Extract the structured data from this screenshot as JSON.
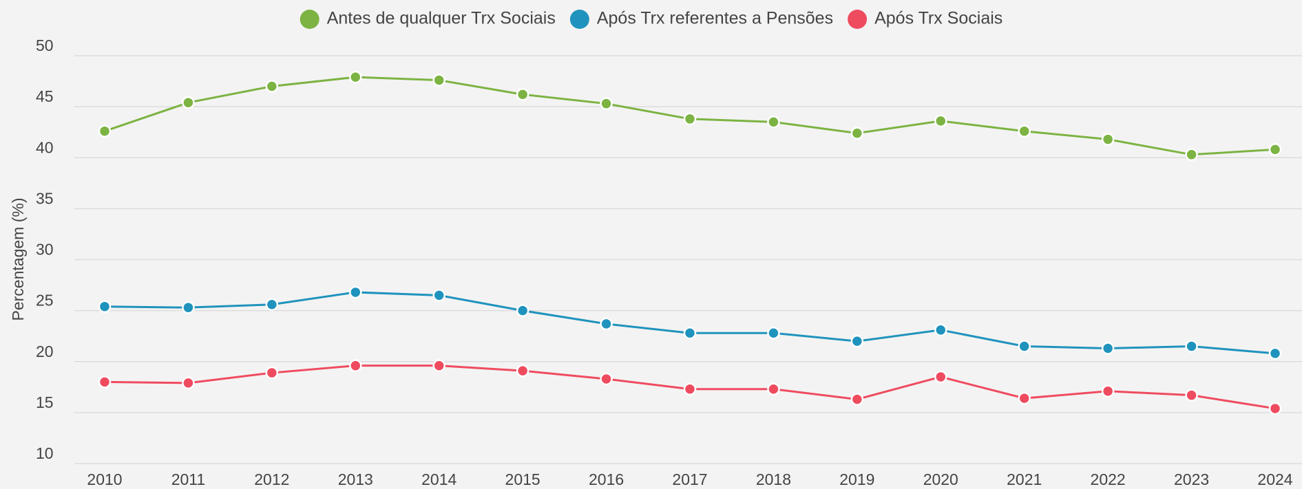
{
  "chart_data": {
    "type": "line",
    "y_label": "Percentagem (%)",
    "categories": [
      "2010",
      "2011",
      "2012",
      "2013",
      "2014",
      "2015",
      "2016",
      "2017",
      "2018",
      "2019",
      "2020",
      "2021",
      "2022",
      "2023",
      "2024"
    ],
    "series": [
      {
        "name": "Antes de qualquer Trx Sociais",
        "color": "#7cb342",
        "values": [
          42.6,
          45.4,
          47.0,
          47.9,
          47.6,
          46.2,
          45.3,
          43.8,
          43.5,
          42.4,
          43.6,
          42.6,
          41.8,
          40.3,
          40.8
        ]
      },
      {
        "name": "Após Trx referentes a Pensões",
        "color": "#1f93bd",
        "values": [
          25.4,
          25.3,
          25.6,
          26.8,
          26.5,
          25.0,
          23.7,
          22.8,
          22.8,
          22.0,
          23.1,
          21.5,
          21.3,
          21.5,
          20.8
        ]
      },
      {
        "name": "Após Trx Sociais",
        "color": "#ef4b5f",
        "values": [
          18.0,
          17.9,
          18.9,
          19.6,
          19.6,
          19.1,
          18.3,
          17.3,
          17.3,
          16.3,
          18.5,
          16.4,
          17.1,
          16.7,
          15.4
        ]
      }
    ],
    "ylim": [
      10,
      50
    ],
    "yticks": [
      10,
      15,
      20,
      25,
      30,
      35,
      40,
      45,
      50
    ],
    "grid": true,
    "legend": "top"
  }
}
